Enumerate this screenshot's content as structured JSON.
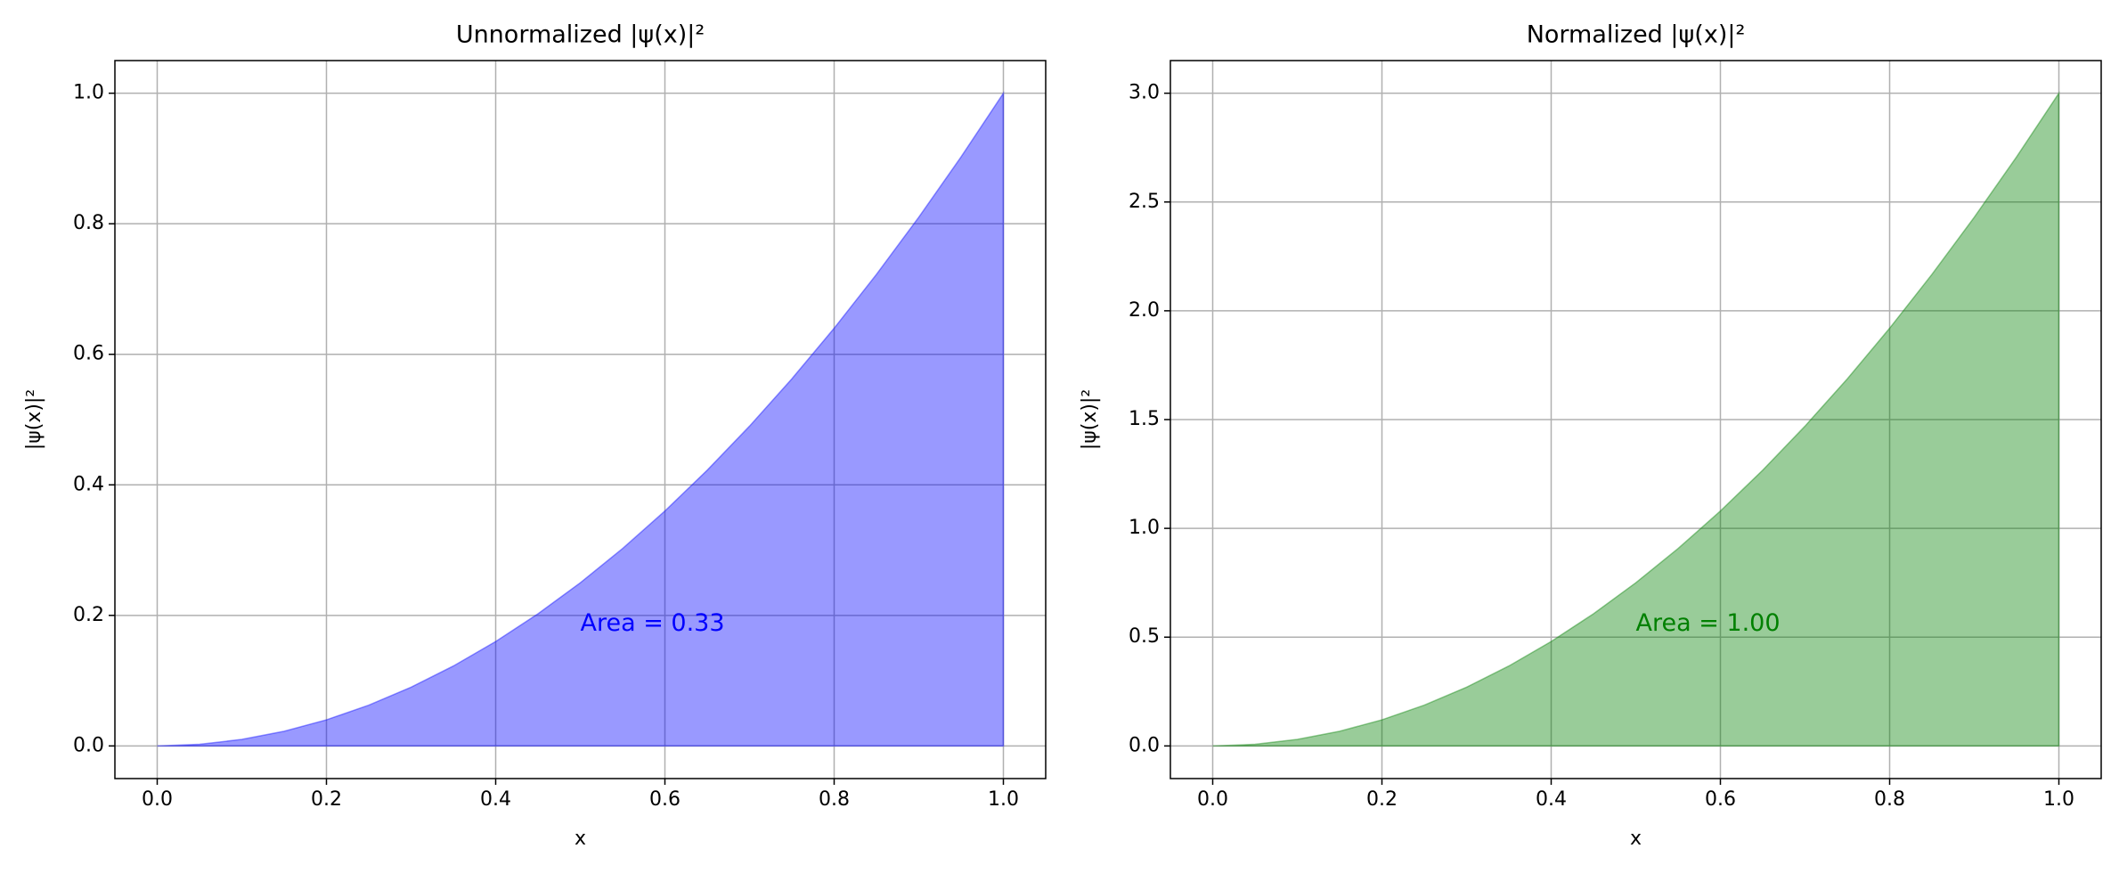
{
  "chart_data": [
    {
      "type": "area",
      "title": "Unnormalized |ψ(x)|²",
      "x_label": "x",
      "y_label": "|ψ(x)|²",
      "x": [
        0,
        0.05,
        0.1,
        0.15,
        0.2,
        0.25,
        0.3,
        0.35,
        0.4,
        0.45,
        0.5,
        0.55,
        0.6,
        0.65,
        0.7,
        0.75,
        0.8,
        0.85,
        0.9,
        0.95,
        1.0
      ],
      "values": [
        0,
        0.0025,
        0.01,
        0.0225,
        0.04,
        0.0625,
        0.09,
        0.1225,
        0.16,
        0.2025,
        0.25,
        0.3025,
        0.36,
        0.4225,
        0.49,
        0.5625,
        0.64,
        0.7225,
        0.81,
        0.9025,
        1.0
      ],
      "color": "blue",
      "alpha": 0.4,
      "annotation": "Area = 0.33",
      "xlim": [
        -0.05,
        1.05
      ],
      "ylim": [
        -0.05,
        1.05
      ],
      "xticks": [
        {
          "value": 0,
          "label": "0.0"
        },
        {
          "value": 0.2,
          "label": "0.2"
        },
        {
          "value": 0.4,
          "label": "0.4"
        },
        {
          "value": 0.6,
          "label": "0.6"
        },
        {
          "value": 0.8,
          "label": "0.8"
        },
        {
          "value": 1.0,
          "label": "1.0"
        }
      ],
      "yticks": [
        {
          "value": 0,
          "label": "0.0"
        },
        {
          "value": 0.2,
          "label": "0.2"
        },
        {
          "value": 0.4,
          "label": "0.4"
        },
        {
          "value": 0.6,
          "label": "0.6"
        },
        {
          "value": 0.8,
          "label": "0.8"
        },
        {
          "value": 1.0,
          "label": "1.0"
        }
      ],
      "grid": true
    },
    {
      "type": "area",
      "title": "Normalized |ψ(x)|²",
      "x_label": "x",
      "y_label": "|ψ(x)|²",
      "x": [
        0,
        0.05,
        0.1,
        0.15,
        0.2,
        0.25,
        0.3,
        0.35,
        0.4,
        0.45,
        0.5,
        0.55,
        0.6,
        0.65,
        0.7,
        0.75,
        0.8,
        0.85,
        0.9,
        0.95,
        1.0
      ],
      "values": [
        0,
        0.0075,
        0.03,
        0.0675,
        0.12,
        0.1875,
        0.27,
        0.3675,
        0.48,
        0.6075,
        0.75,
        0.9075,
        1.08,
        1.2675,
        1.47,
        1.6875,
        1.92,
        2.1675,
        2.43,
        2.7075,
        3.0
      ],
      "color": "green",
      "alpha": 0.4,
      "annotation": "Area = 1.00",
      "xlim": [
        -0.05,
        1.05
      ],
      "ylim": [
        -0.15,
        3.15
      ],
      "xticks": [
        {
          "value": 0,
          "label": "0.0"
        },
        {
          "value": 0.2,
          "label": "0.2"
        },
        {
          "value": 0.4,
          "label": "0.4"
        },
        {
          "value": 0.6,
          "label": "0.6"
        },
        {
          "value": 0.8,
          "label": "0.8"
        },
        {
          "value": 1.0,
          "label": "1.0"
        }
      ],
      "yticks": [
        {
          "value": 0,
          "label": "0.0"
        },
        {
          "value": 0.5,
          "label": "0.5"
        },
        {
          "value": 1.0,
          "label": "1.0"
        },
        {
          "value": 1.5,
          "label": "1.5"
        },
        {
          "value": 2.0,
          "label": "2.0"
        },
        {
          "value": 2.5,
          "label": "2.5"
        },
        {
          "value": 3.0,
          "label": "3.0"
        }
      ],
      "grid": true
    }
  ]
}
